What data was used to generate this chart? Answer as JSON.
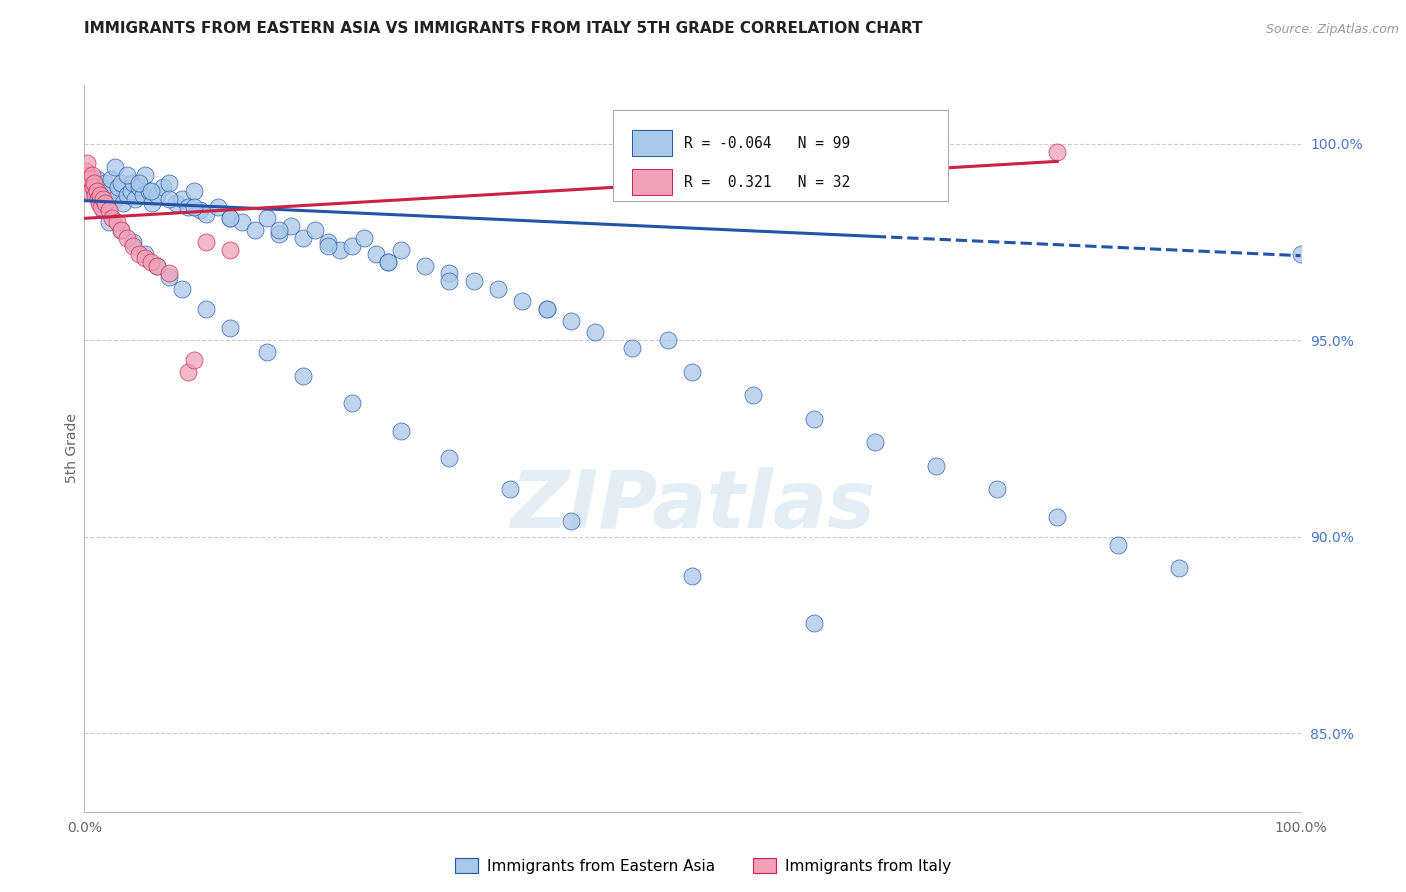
{
  "title": "IMMIGRANTS FROM EASTERN ASIA VS IMMIGRANTS FROM ITALY 5TH GRADE CORRELATION CHART",
  "source": "Source: ZipAtlas.com",
  "legend_label_blue": "Immigrants from Eastern Asia",
  "legend_label_pink": "Immigrants from Italy",
  "R_blue": -0.064,
  "N_blue": 99,
  "R_pink": 0.321,
  "N_pink": 32,
  "color_blue": "#a8c8e8",
  "color_pink": "#f0a0b8",
  "trendline_blue": "#2255aa",
  "trendline_pink": "#cc2244",
  "watermark": "ZIPatlas",
  "blue_scatter_x": [
    0.3,
    0.5,
    0.8,
    1.0,
    1.2,
    1.5,
    1.7,
    2.0,
    2.2,
    2.5,
    2.8,
    3.0,
    3.2,
    3.5,
    3.8,
    4.0,
    4.2,
    4.5,
    4.8,
    5.0,
    5.3,
    5.6,
    6.0,
    6.5,
    7.0,
    7.5,
    8.0,
    8.5,
    9.0,
    9.5,
    10.0,
    11.0,
    12.0,
    13.0,
    14.0,
    15.0,
    16.0,
    17.0,
    18.0,
    19.0,
    20.0,
    21.0,
    22.0,
    23.0,
    24.0,
    25.0,
    26.0,
    28.0,
    30.0,
    32.0,
    34.0,
    36.0,
    38.0,
    40.0,
    42.0,
    45.0,
    50.0,
    55.0,
    60.0,
    65.0,
    70.0,
    75.0,
    80.0,
    85.0,
    90.0,
    1.5,
    2.0,
    3.0,
    4.0,
    5.0,
    6.0,
    7.0,
    8.0,
    10.0,
    12.0,
    15.0,
    18.0,
    22.0,
    26.0,
    30.0,
    35.0,
    40.0,
    50.0,
    60.0,
    2.5,
    3.5,
    4.5,
    5.5,
    7.0,
    9.0,
    12.0,
    16.0,
    20.0,
    25.0,
    30.0,
    38.0,
    48.0,
    100.0
  ],
  "blue_scatter_y": [
    99.2,
    99.0,
    98.8,
    99.1,
    98.9,
    98.7,
    99.0,
    98.8,
    99.1,
    98.6,
    98.9,
    99.0,
    98.5,
    98.7,
    98.8,
    99.0,
    98.6,
    98.9,
    98.7,
    99.2,
    98.8,
    98.5,
    98.7,
    98.9,
    99.0,
    98.5,
    98.6,
    98.4,
    98.8,
    98.3,
    98.2,
    98.4,
    98.1,
    98.0,
    97.8,
    98.1,
    97.7,
    97.9,
    97.6,
    97.8,
    97.5,
    97.3,
    97.4,
    97.6,
    97.2,
    97.0,
    97.3,
    96.9,
    96.7,
    96.5,
    96.3,
    96.0,
    95.8,
    95.5,
    95.2,
    94.8,
    94.2,
    93.6,
    93.0,
    92.4,
    91.8,
    91.2,
    90.5,
    89.8,
    89.2,
    98.3,
    98.0,
    97.8,
    97.5,
    97.2,
    96.9,
    96.6,
    96.3,
    95.8,
    95.3,
    94.7,
    94.1,
    93.4,
    92.7,
    92.0,
    91.2,
    90.4,
    89.0,
    87.8,
    99.4,
    99.2,
    99.0,
    98.8,
    98.6,
    98.4,
    98.1,
    97.8,
    97.4,
    97.0,
    96.5,
    95.8,
    95.0,
    97.2
  ],
  "pink_scatter_x": [
    0.1,
    0.2,
    0.3,
    0.4,
    0.5,
    0.6,
    0.7,
    0.8,
    0.9,
    1.0,
    1.1,
    1.2,
    1.3,
    1.4,
    1.5,
    1.7,
    2.0,
    2.3,
    2.7,
    3.0,
    3.5,
    4.0,
    4.5,
    5.0,
    5.5,
    6.0,
    7.0,
    8.5,
    9.0,
    10.0,
    12.0,
    80.0
  ],
  "pink_scatter_y": [
    99.3,
    99.5,
    99.0,
    98.8,
    99.1,
    99.2,
    98.9,
    99.0,
    98.7,
    98.8,
    98.6,
    98.5,
    98.7,
    98.4,
    98.6,
    98.5,
    98.3,
    98.1,
    98.0,
    97.8,
    97.6,
    97.4,
    97.2,
    97.1,
    97.0,
    96.9,
    96.7,
    94.2,
    94.5,
    97.5,
    97.3,
    99.8
  ],
  "xmin": 0.0,
  "xmax": 100.0,
  "ymin": 83.0,
  "ymax": 101.5,
  "grid_yticks": [
    85.0,
    90.0,
    95.0,
    100.0
  ],
  "right_ytick_labels": [
    "100.0%",
    "95.0%",
    "90.0%",
    "85.0%"
  ],
  "right_ytick_values": [
    100.0,
    95.0,
    90.0,
    85.0
  ],
  "blue_trend_x0": 0.0,
  "blue_trend_y0": 98.55,
  "blue_trend_x1": 100.0,
  "blue_trend_y1": 97.15,
  "blue_solid_end": 65.0,
  "pink_trend_x0": 0.0,
  "pink_trend_y0": 98.1,
  "pink_trend_x1": 80.0,
  "pink_trend_y1": 99.55,
  "background_color": "#ffffff"
}
